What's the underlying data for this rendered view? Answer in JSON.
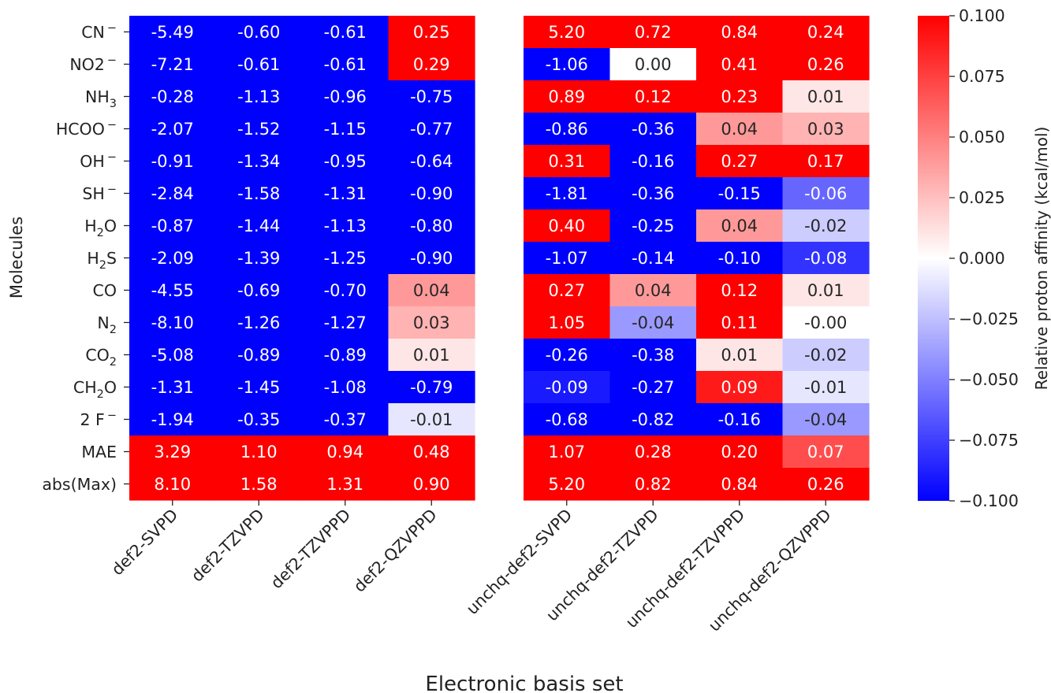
{
  "chart_data": {
    "type": "heatmap",
    "xlabel": "Electronic basis set",
    "ylabel": "Molecules",
    "rows": [
      {
        "main": "CN",
        "sub": "",
        "sup": "−"
      },
      {
        "main": "NO2",
        "sub": "",
        "sup": "−"
      },
      {
        "main": "NH",
        "sub": "3",
        "sup": ""
      },
      {
        "main": "HCOO",
        "sub": "",
        "sup": "−"
      },
      {
        "main": "OH",
        "sub": "",
        "sup": "−"
      },
      {
        "main": "SH",
        "sub": "",
        "sup": "−"
      },
      {
        "main": "H",
        "sub": "2",
        "sup": "",
        "tail": "O"
      },
      {
        "main": "H",
        "sub": "2",
        "sup": "",
        "tail": "S"
      },
      {
        "main": "CO",
        "sub": "",
        "sup": ""
      },
      {
        "main": "N",
        "sub": "2",
        "sup": ""
      },
      {
        "main": "CO",
        "sub": "2",
        "sup": ""
      },
      {
        "main": "CH",
        "sub": "2",
        "sup": "",
        "tail": "O"
      },
      {
        "main": "2 F",
        "sub": "",
        "sup": "−"
      },
      {
        "main": "MAE",
        "sub": "",
        "sup": ""
      },
      {
        "main": "abs(Max)",
        "sub": "",
        "sup": ""
      }
    ],
    "panels": [
      {
        "columns": [
          "def2-SVPD",
          "def2-TZVPD",
          "def2-TZVPPD",
          "def2-QZVPPD"
        ],
        "values": [
          [
            -5.49,
            -0.6,
            -0.61,
            0.25
          ],
          [
            -7.21,
            -0.61,
            -0.61,
            0.29
          ],
          [
            -0.28,
            -1.13,
            -0.96,
            -0.75
          ],
          [
            -2.07,
            -1.52,
            -1.15,
            -0.77
          ],
          [
            -0.91,
            -1.34,
            -0.95,
            -0.64
          ],
          [
            -2.84,
            -1.58,
            -1.31,
            -0.9
          ],
          [
            -0.87,
            -1.44,
            -1.13,
            -0.8
          ],
          [
            -2.09,
            -1.39,
            -1.25,
            -0.9
          ],
          [
            -4.55,
            -0.69,
            -0.7,
            0.04
          ],
          [
            -8.1,
            -1.26,
            -1.27,
            0.03
          ],
          [
            -5.08,
            -0.89,
            -0.89,
            0.01
          ],
          [
            -1.31,
            -1.45,
            -1.08,
            -0.79
          ],
          [
            -1.94,
            -0.35,
            -0.37,
            -0.01
          ],
          [
            3.29,
            1.1,
            0.94,
            0.48
          ],
          [
            8.1,
            1.58,
            1.31,
            0.9
          ]
        ]
      },
      {
        "columns": [
          "unchq-def2-SVPD",
          "unchq-def2-TZVPD",
          "unchq-def2-TZVPPD",
          "unchq-def2-QZVPPD"
        ],
        "values": [
          [
            5.2,
            0.72,
            0.84,
            0.24
          ],
          [
            -1.06,
            0.0,
            0.41,
            0.26
          ],
          [
            0.89,
            0.12,
            0.23,
            0.01
          ],
          [
            -0.86,
            -0.36,
            0.04,
            0.03
          ],
          [
            0.31,
            -0.16,
            0.27,
            0.17
          ],
          [
            -1.81,
            -0.36,
            -0.15,
            -0.06
          ],
          [
            0.4,
            -0.25,
            0.04,
            -0.02
          ],
          [
            -1.07,
            -0.14,
            -0.1,
            -0.08
          ],
          [
            0.27,
            0.04,
            0.12,
            0.01
          ],
          [
            1.05,
            -0.04,
            0.11,
            -0.0
          ],
          [
            -0.26,
            -0.38,
            0.01,
            -0.02
          ],
          [
            -0.09,
            -0.27,
            0.09,
            -0.01
          ],
          [
            -0.68,
            -0.82,
            -0.16,
            -0.04
          ],
          [
            1.07,
            0.28,
            0.2,
            0.07
          ],
          [
            5.2,
            0.82,
            0.84,
            0.26
          ]
        ]
      }
    ],
    "colorbar": {
      "label": "Relative proton affinity (kcal/mol)",
      "vmin": -0.1,
      "vmax": 0.1,
      "ticks": [
        "0.100",
        "0.075",
        "0.050",
        "0.025",
        "0.000",
        "−0.025",
        "−0.050",
        "−0.075",
        "−0.100"
      ],
      "tick_values": [
        0.1,
        0.075,
        0.05,
        0.025,
        0.0,
        -0.025,
        -0.05,
        -0.075,
        -0.1
      ],
      "colormap": "bwr",
      "low_color": "#0000ff",
      "mid_color": "#ffffff",
      "high_color": "#ff0000"
    }
  }
}
